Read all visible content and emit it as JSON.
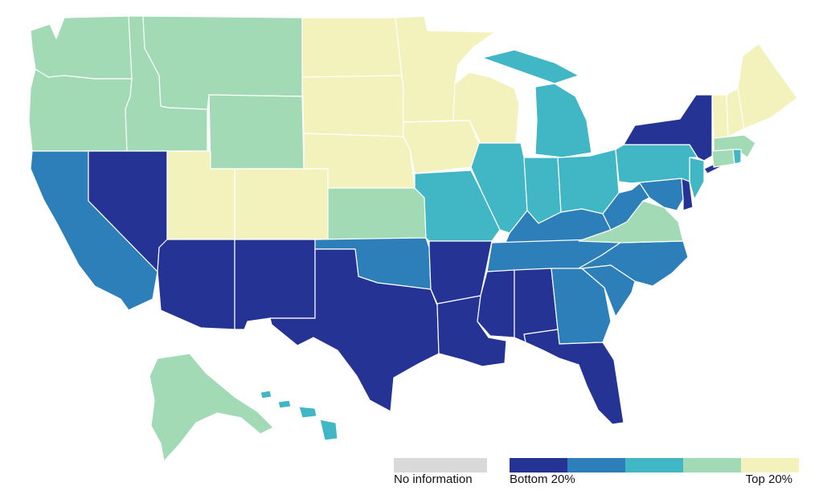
{
  "palette": {
    "bottom20": "#253494",
    "q2": "#2c7fb8",
    "q3": "#41b6c4",
    "q4": "#a1dab4",
    "top20": "#f3f1bc",
    "no_info": "#d9d9d9"
  },
  "legend": {
    "no_information": "No information",
    "low_label": "Bottom 20%",
    "high_label": "Top 20%"
  },
  "states": {
    "WA": "q4",
    "OR": "q4",
    "ID": "q4",
    "MT": "q4",
    "WY": "q4",
    "CA": "q2",
    "NV": "bottom20",
    "UT": "top20",
    "CO": "top20",
    "AZ": "bottom20",
    "NM": "bottom20",
    "ND": "top20",
    "SD": "top20",
    "NE": "top20",
    "KS": "q4",
    "OK": "q2",
    "TX": "bottom20",
    "MN": "top20",
    "IA": "top20",
    "MO": "q3",
    "AR": "bottom20",
    "LA": "bottom20",
    "WI": "top20",
    "IL": "q3",
    "MI": "q3",
    "IN": "q3",
    "OH": "q3",
    "KY": "q2",
    "TN": "q2",
    "MS": "bottom20",
    "AL": "bottom20",
    "GA": "q2",
    "FL": "bottom20",
    "SC": "q2",
    "NC": "q2",
    "VA": "q4",
    "WV": "q2",
    "MD": "q2",
    "DE": "bottom20",
    "NJ": "q3",
    "PA": "q3",
    "NY": "bottom20",
    "CT": "q4",
    "RI": "q3",
    "MA": "q4",
    "VT": "top20",
    "NH": "top20",
    "ME": "top20",
    "AK": "q4",
    "HI": "q3"
  }
}
